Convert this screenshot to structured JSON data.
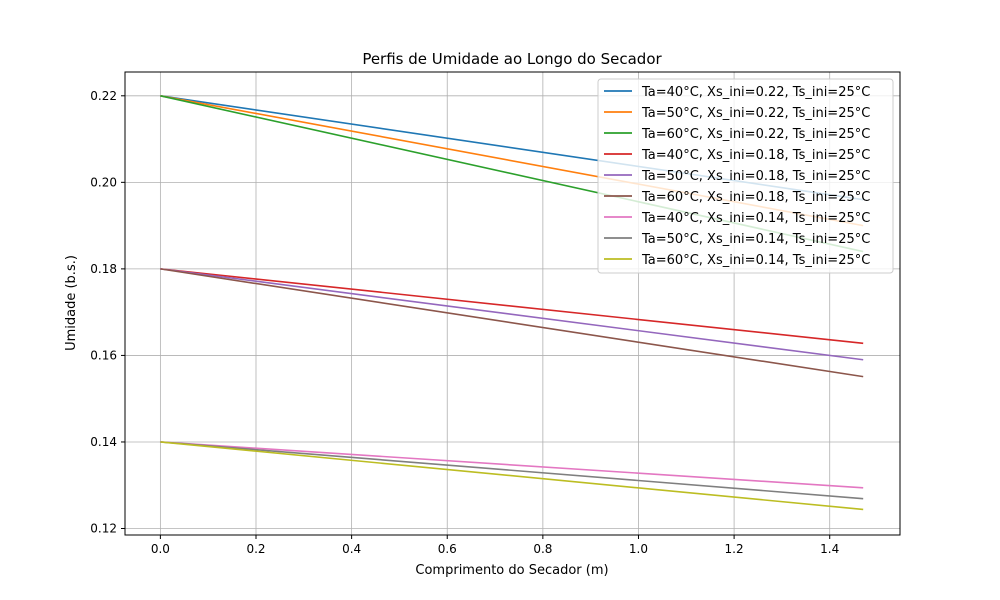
{
  "chart_data": {
    "type": "line",
    "title": "Perfis de Umidade ao Longo do Secador",
    "xlabel": "Comprimento do Secador (m)",
    "ylabel": "Umidade (b.s.)",
    "xlim": [
      -0.074,
      1.547
    ],
    "ylim": [
      0.1185,
      0.2255
    ],
    "xticks": [
      0.0,
      0.2,
      0.4,
      0.6,
      0.8,
      1.0,
      1.2,
      1.4
    ],
    "xtick_labels": [
      "0.0",
      "0.2",
      "0.4",
      "0.6",
      "0.8",
      "1.0",
      "1.2",
      "1.4"
    ],
    "yticks": [
      0.12,
      0.14,
      0.16,
      0.18,
      0.2,
      0.22
    ],
    "ytick_labels": [
      "0.12",
      "0.14",
      "0.16",
      "0.18",
      "0.20",
      "0.22"
    ],
    "grid": true,
    "legend_position": "top-right",
    "x_range": [
      0.0,
      1.47
    ],
    "series": [
      {
        "name": "Ta=40°C, Xs_ini=0.22, Ts_ini=25°C",
        "color": "#1f77b4",
        "values": [
          0.22,
          0.196
        ]
      },
      {
        "name": "Ta=50°C, Xs_ini=0.22, Ts_ini=25°C",
        "color": "#ff7f0e",
        "values": [
          0.22,
          0.19
        ]
      },
      {
        "name": "Ta=60°C, Xs_ini=0.22, Ts_ini=25°C",
        "color": "#2ca02c",
        "values": [
          0.22,
          0.184
        ]
      },
      {
        "name": "Ta=40°C, Xs_ini=0.18, Ts_ini=25°C",
        "color": "#d62728",
        "values": [
          0.18,
          0.1628
        ]
      },
      {
        "name": "Ta=50°C, Xs_ini=0.18, Ts_ini=25°C",
        "color": "#9467bd",
        "values": [
          0.18,
          0.159
        ]
      },
      {
        "name": "Ta=60°C, Xs_ini=0.18, Ts_ini=25°C",
        "color": "#8c564b",
        "values": [
          0.18,
          0.1551
        ]
      },
      {
        "name": "Ta=40°C, Xs_ini=0.14, Ts_ini=25°C",
        "color": "#e377c2",
        "values": [
          0.14,
          0.1294
        ]
      },
      {
        "name": "Ta=50°C, Xs_ini=0.14, Ts_ini=25°C",
        "color": "#7f7f7f",
        "values": [
          0.14,
          0.1269
        ]
      },
      {
        "name": "Ta=60°C, Xs_ini=0.14, Ts_ini=25°C",
        "color": "#bcbd22",
        "values": [
          0.14,
          0.1244
        ]
      }
    ]
  }
}
